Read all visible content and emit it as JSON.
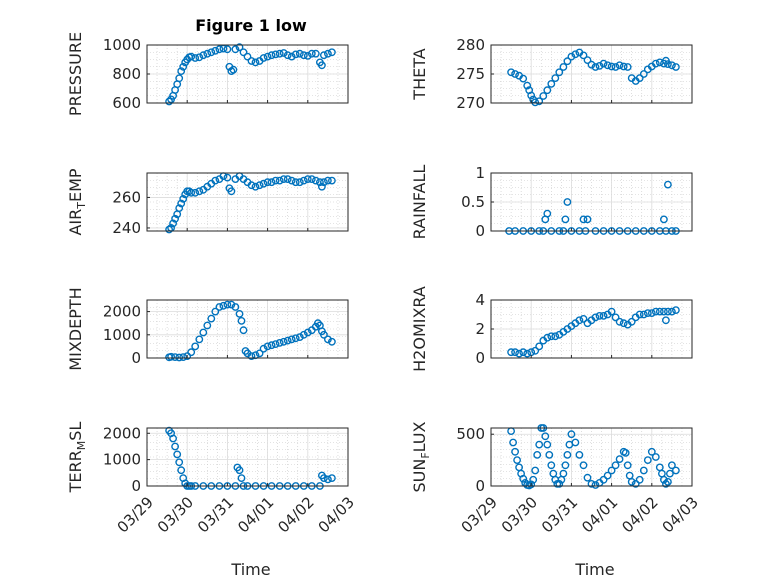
{
  "figure": {
    "title": "Figure 1 low",
    "marker_color": "#0072BD",
    "x_tick_labels": [
      "03/29",
      "03/30",
      "03/31",
      "04/01",
      "04/02",
      "04/03"
    ],
    "x_label": "Time"
  },
  "chart_data": [
    {
      "type": "scatter",
      "ylabel": "PRESSURE",
      "ylim": [
        600,
        1000
      ],
      "yticks": [
        600,
        800,
        1000
      ],
      "xlim": [
        0,
        5
      ],
      "grid": true,
      "marker": "circle",
      "x": [
        0.55,
        0.6,
        0.65,
        0.7,
        0.75,
        0.8,
        0.85,
        0.9,
        0.95,
        1.0,
        1.05,
        1.1,
        1.2,
        1.3,
        1.4,
        1.5,
        1.6,
        1.7,
        1.8,
        1.9,
        2.0,
        2.05,
        2.1,
        2.15,
        2.2,
        2.3,
        2.4,
        2.5,
        2.6,
        2.7,
        2.8,
        2.9,
        3.0,
        3.1,
        3.2,
        3.3,
        3.4,
        3.5,
        3.6,
        3.7,
        3.8,
        3.9,
        4.0,
        4.1,
        4.2,
        4.3,
        4.35,
        4.4,
        4.5,
        4.6
      ],
      "y": [
        610,
        625,
        650,
        690,
        730,
        770,
        820,
        850,
        880,
        900,
        915,
        920,
        910,
        915,
        930,
        940,
        950,
        960,
        970,
        975,
        970,
        850,
        820,
        830,
        970,
        985,
        950,
        920,
        890,
        880,
        890,
        910,
        920,
        930,
        935,
        940,
        945,
        930,
        920,
        935,
        940,
        930,
        925,
        940,
        940,
        880,
        860,
        930,
        940,
        950
      ]
    },
    {
      "type": "scatter",
      "ylabel": "THETA",
      "ylim": [
        270,
        280
      ],
      "yticks": [
        270,
        275,
        280
      ],
      "xlim": [
        0,
        5
      ],
      "grid": true,
      "marker": "circle",
      "x": [
        0.5,
        0.6,
        0.7,
        0.8,
        0.9,
        0.95,
        1.0,
        1.05,
        1.1,
        1.2,
        1.3,
        1.4,
        1.5,
        1.6,
        1.7,
        1.8,
        1.9,
        2.0,
        2.1,
        2.2,
        2.3,
        2.4,
        2.5,
        2.6,
        2.7,
        2.8,
        2.9,
        3.0,
        3.1,
        3.2,
        3.3,
        3.4,
        3.5,
        3.6,
        3.7,
        3.8,
        3.9,
        4.0,
        4.1,
        4.2,
        4.3,
        4.35,
        4.4,
        4.5,
        4.6
      ],
      "y": [
        275.3,
        275.0,
        274.7,
        274.2,
        273.0,
        272.2,
        271.3,
        270.6,
        270.1,
        270.3,
        271.2,
        272.2,
        273.3,
        274.3,
        275.3,
        276.2,
        277.2,
        278.0,
        278.4,
        278.7,
        278.2,
        277.4,
        276.6,
        276.2,
        276.4,
        276.8,
        276.5,
        276.3,
        276.2,
        276.5,
        276.3,
        276.2,
        274.3,
        273.8,
        274.3,
        275.0,
        275.8,
        276.3,
        276.8,
        277.0,
        276.8,
        277.3,
        276.7,
        276.5,
        276.2
      ]
    },
    {
      "type": "scatter",
      "ylabel": "AIR_TEMP",
      "ylim": [
        238,
        276
      ],
      "yticks": [
        240,
        260
      ],
      "xlim": [
        0,
        5
      ],
      "grid": true,
      "marker": "circle",
      "x": [
        0.55,
        0.6,
        0.65,
        0.7,
        0.75,
        0.8,
        0.85,
        0.9,
        0.95,
        1.0,
        1.05,
        1.1,
        1.2,
        1.3,
        1.4,
        1.5,
        1.6,
        1.7,
        1.8,
        1.9,
        2.0,
        2.05,
        2.1,
        2.2,
        2.3,
        2.4,
        2.5,
        2.6,
        2.7,
        2.8,
        2.9,
        3.0,
        3.1,
        3.2,
        3.3,
        3.4,
        3.5,
        3.6,
        3.7,
        3.8,
        3.9,
        4.0,
        4.1,
        4.2,
        4.3,
        4.35,
        4.4,
        4.5,
        4.6
      ],
      "y": [
        239,
        240,
        243,
        246,
        249,
        253,
        256,
        259,
        262,
        264,
        264,
        263,
        263,
        264,
        265,
        267,
        269,
        271,
        272,
        274,
        273,
        266,
        264,
        272,
        274,
        272,
        270,
        268,
        267,
        268,
        269,
        270,
        270,
        271,
        271,
        272,
        272,
        271,
        270,
        270,
        271,
        272,
        272,
        271,
        270,
        267,
        270,
        271,
        271
      ]
    },
    {
      "type": "scatter",
      "ylabel": "RAINFALL",
      "ylim": [
        0,
        1
      ],
      "yticks": [
        0,
        0.5,
        1
      ],
      "xlim": [
        0,
        5
      ],
      "grid": true,
      "marker": "circle",
      "x": [
        0.45,
        0.6,
        0.8,
        1.0,
        1.2,
        1.3,
        1.35,
        1.4,
        1.5,
        1.7,
        1.8,
        1.85,
        1.9,
        2.0,
        2.2,
        2.3,
        2.35,
        2.4,
        2.6,
        2.8,
        3.0,
        3.2,
        3.4,
        3.6,
        3.8,
        4.0,
        4.2,
        4.3,
        4.35,
        4.4,
        4.5,
        4.6
      ],
      "y": [
        0,
        0,
        0,
        0,
        0,
        0,
        0.2,
        0.3,
        0,
        0,
        0,
        0.2,
        0.5,
        0,
        0,
        0.2,
        0,
        0.2,
        0,
        0,
        0,
        0,
        0,
        0,
        0,
        0,
        0,
        0.2,
        0,
        0.8,
        0,
        0
      ]
    },
    {
      "type": "scatter",
      "ylabel": "MIXDEPTH",
      "ylim": [
        0,
        2500
      ],
      "yticks": [
        0,
        1000,
        2000
      ],
      "xlim": [
        0,
        5
      ],
      "grid": true,
      "marker": "circle",
      "x": [
        0.55,
        0.6,
        0.7,
        0.8,
        0.9,
        1.0,
        1.1,
        1.2,
        1.3,
        1.4,
        1.5,
        1.6,
        1.7,
        1.8,
        1.9,
        2.0,
        2.1,
        2.2,
        2.3,
        2.35,
        2.4,
        2.45,
        2.5,
        2.6,
        2.7,
        2.8,
        2.9,
        3.0,
        3.1,
        3.2,
        3.3,
        3.4,
        3.5,
        3.6,
        3.7,
        3.8,
        3.9,
        4.0,
        4.1,
        4.2,
        4.25,
        4.3,
        4.35,
        4.4,
        4.5,
        4.6
      ],
      "y": [
        30,
        50,
        40,
        20,
        40,
        80,
        250,
        500,
        800,
        1100,
        1400,
        1700,
        2000,
        2200,
        2250,
        2300,
        2300,
        2200,
        1900,
        1600,
        1200,
        300,
        200,
        80,
        120,
        200,
        400,
        500,
        550,
        600,
        650,
        700,
        750,
        800,
        850,
        900,
        1000,
        1100,
        1200,
        1350,
        1500,
        1400,
        1150,
        1000,
        800,
        700
      ]
    },
    {
      "type": "scatter",
      "ylabel": "H2OMIXRA",
      "ylim": [
        0,
        4
      ],
      "yticks": [
        0,
        2,
        4
      ],
      "xlim": [
        0,
        5
      ],
      "grid": true,
      "marker": "circle",
      "x": [
        0.5,
        0.6,
        0.7,
        0.8,
        0.9,
        1.0,
        1.1,
        1.2,
        1.3,
        1.4,
        1.5,
        1.6,
        1.7,
        1.8,
        1.9,
        2.0,
        2.1,
        2.2,
        2.3,
        2.4,
        2.5,
        2.6,
        2.7,
        2.8,
        2.9,
        3.0,
        3.1,
        3.2,
        3.3,
        3.4,
        3.5,
        3.6,
        3.7,
        3.8,
        3.9,
        4.0,
        4.1,
        4.2,
        4.3,
        4.35,
        4.4,
        4.5,
        4.6
      ],
      "y": [
        0.4,
        0.4,
        0.3,
        0.4,
        0.3,
        0.4,
        0.5,
        0.8,
        1.2,
        1.4,
        1.5,
        1.5,
        1.6,
        1.8,
        2.0,
        2.2,
        2.4,
        2.6,
        2.7,
        2.4,
        2.6,
        2.8,
        2.9,
        2.9,
        3.0,
        3.2,
        2.8,
        2.5,
        2.4,
        2.3,
        2.5,
        2.8,
        3.0,
        3.0,
        3.1,
        3.1,
        3.2,
        3.2,
        3.2,
        2.6,
        3.2,
        3.2,
        3.3
      ]
    },
    {
      "type": "scatter",
      "ylabel": "TERR_MSL",
      "ylim": [
        0,
        2200
      ],
      "yticks": [
        0,
        1000,
        2000
      ],
      "xlim": [
        0,
        5
      ],
      "grid": true,
      "marker": "circle",
      "x": [
        0.55,
        0.6,
        0.65,
        0.7,
        0.75,
        0.8,
        0.85,
        0.9,
        0.95,
        1.0,
        1.05,
        1.1,
        1.2,
        1.4,
        1.6,
        1.8,
        2.0,
        2.2,
        2.25,
        2.3,
        2.35,
        2.4,
        2.5,
        2.7,
        2.9,
        3.1,
        3.3,
        3.5,
        3.7,
        3.9,
        4.1,
        4.3,
        4.35,
        4.4,
        4.5,
        4.6
      ],
      "y": [
        2100,
        2000,
        1800,
        1500,
        1200,
        900,
        600,
        300,
        100,
        0,
        0,
        0,
        0,
        0,
        0,
        0,
        0,
        0,
        700,
        600,
        300,
        0,
        0,
        0,
        0,
        0,
        0,
        0,
        0,
        0,
        0,
        0,
        400,
        300,
        250,
        300
      ]
    },
    {
      "type": "scatter",
      "ylabel": "SUN_FLUX",
      "ylim": [
        0,
        560
      ],
      "yticks": [
        0,
        500
      ],
      "xlim": [
        0,
        5
      ],
      "grid": true,
      "marker": "circle",
      "x": [
        0.5,
        0.55,
        0.6,
        0.65,
        0.7,
        0.75,
        0.8,
        0.85,
        0.9,
        0.95,
        1.0,
        1.05,
        1.1,
        1.15,
        1.2,
        1.25,
        1.3,
        1.35,
        1.4,
        1.45,
        1.5,
        1.55,
        1.6,
        1.65,
        1.7,
        1.75,
        1.8,
        1.85,
        1.9,
        1.95,
        2.0,
        2.1,
        2.2,
        2.3,
        2.4,
        2.5,
        2.6,
        2.7,
        2.8,
        2.9,
        3.0,
        3.1,
        3.2,
        3.3,
        3.35,
        3.4,
        3.45,
        3.5,
        3.6,
        3.7,
        3.8,
        3.9,
        4.0,
        4.1,
        4.2,
        4.25,
        4.3,
        4.35,
        4.4,
        4.45,
        4.5,
        4.6
      ],
      "y": [
        530,
        420,
        330,
        250,
        180,
        120,
        70,
        30,
        10,
        5,
        15,
        60,
        150,
        300,
        400,
        560,
        560,
        480,
        400,
        300,
        200,
        120,
        60,
        20,
        20,
        60,
        120,
        200,
        300,
        400,
        500,
        420,
        300,
        200,
        80,
        20,
        10,
        30,
        60,
        100,
        150,
        200,
        260,
        330,
        320,
        200,
        100,
        40,
        20,
        60,
        150,
        250,
        330,
        280,
        180,
        120,
        60,
        20,
        40,
        120,
        200,
        150
      ]
    }
  ]
}
